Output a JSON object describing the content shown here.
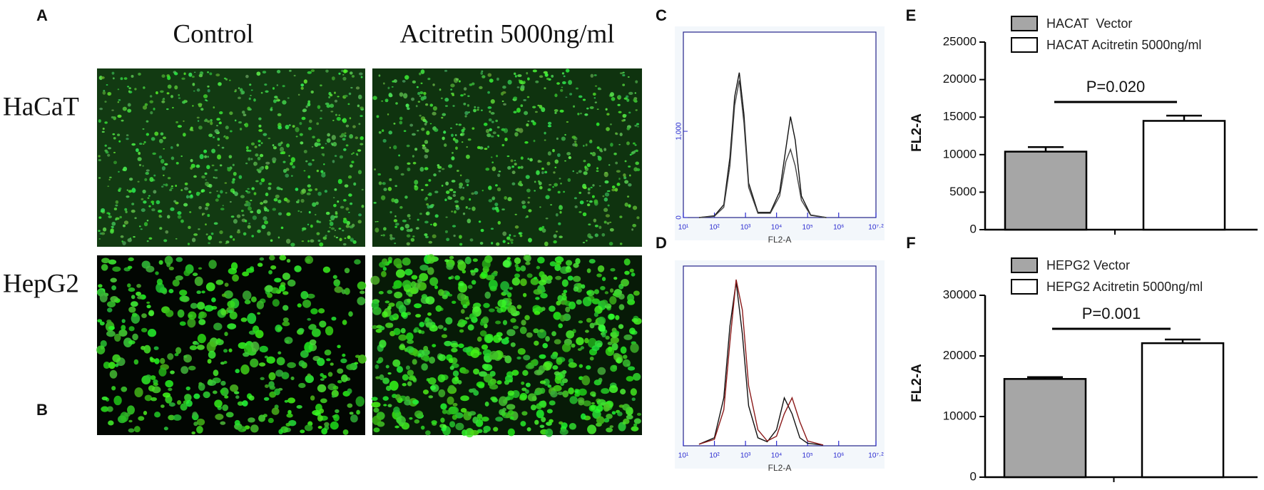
{
  "microscopy": {
    "panel_labels": [
      "A",
      "B"
    ],
    "column_labels": [
      "Control",
      "Acitretin 5000ng/ml"
    ],
    "row_labels": [
      "HaCaT",
      "HepG2"
    ]
  },
  "chart_data": [
    {
      "type": "line",
      "panel": "C",
      "xlabel": "FL2-A",
      "xscale": "log",
      "x": [
        32,
        100,
        200,
        316,
        447,
        631,
        891,
        1259,
        2512,
        6310,
        12589,
        19953,
        28184,
        39811,
        63096,
        125893,
        398107
      ],
      "series": [
        {
          "color": "#111111",
          "values": [
            0,
            20,
            150,
            700,
            1400,
            1680,
            1200,
            400,
            60,
            60,
            300,
            800,
            1170,
            900,
            250,
            30,
            0
          ]
        },
        {
          "color": "#444444",
          "values": [
            0,
            15,
            120,
            600,
            1300,
            1590,
            1100,
            350,
            50,
            50,
            250,
            650,
            790,
            600,
            200,
            25,
            0
          ]
        }
      ],
      "xlim": [
        10,
        15848932
      ],
      "ylim": [
        0,
        2150
      ],
      "xticks": [
        {
          "value": 10,
          "label": "10¹"
        },
        {
          "value": 100,
          "label": "10²"
        },
        {
          "value": 1000,
          "label": "10³"
        },
        {
          "value": 10000,
          "label": "10⁴"
        },
        {
          "value": 100000,
          "label": "10⁵"
        },
        {
          "value": 1000000,
          "label": "10⁶"
        },
        {
          "value": 15848932,
          "label": "10⁷·²"
        }
      ],
      "yticks": [
        0,
        {
          "value": 1000,
          "label": "1,000"
        }
      ]
    },
    {
      "type": "line",
      "panel": "D",
      "xlabel": "FL2-A",
      "xscale": "log",
      "x": [
        32,
        100,
        200,
        316,
        501,
        794,
        1259,
        2512,
        5012,
        10000,
        17783,
        31623,
        56234,
        100000,
        316228
      ],
      "series": [
        {
          "color": "#111111",
          "values": [
            2,
            10,
            60,
            150,
            205,
            140,
            50,
            10,
            5,
            20,
            60,
            40,
            10,
            3,
            1
          ]
        },
        {
          "color": "#8b1a1a",
          "values": [
            2,
            8,
            45,
            130,
            208,
            170,
            75,
            20,
            6,
            12,
            40,
            60,
            30,
            6,
            1
          ]
        }
      ],
      "xlim": [
        10,
        15848932
      ],
      "ylim": [
        0,
        225
      ],
      "xticks": [
        {
          "value": 10,
          "label": "10¹"
        },
        {
          "value": 100,
          "label": "10²"
        },
        {
          "value": 1000,
          "label": "10³"
        },
        {
          "value": 10000,
          "label": "10⁴"
        },
        {
          "value": 100000,
          "label": "10⁵"
        },
        {
          "value": 1000000,
          "label": "10⁶"
        },
        {
          "value": 15848932,
          "label": "10⁷·²"
        }
      ]
    },
    {
      "type": "bar",
      "panel": "E",
      "ylabel": "FL2-A",
      "annotation": "P=0.020",
      "series": [
        {
          "name": "HACAT  Vector",
          "color": "#a6a6a6",
          "values": [
            10400
          ],
          "errors": [
            600
          ]
        },
        {
          "name": "HACAT Acitretin 5000ng/ml",
          "color": "#ffffff",
          "values": [
            14500
          ],
          "errors": [
            700
          ]
        }
      ],
      "ylim": [
        0,
        25000
      ],
      "yticks": [
        0,
        5000,
        10000,
        15000,
        20000,
        25000
      ]
    },
    {
      "type": "bar",
      "panel": "F",
      "ylabel": "FL2-A",
      "annotation": "P=0.001",
      "series": [
        {
          "name": "HEPG2 Vector",
          "color": "#a6a6a6",
          "values": [
            16200
          ],
          "errors": [
            300
          ]
        },
        {
          "name": "HEPG2 Acitretin 5000ng/ml",
          "color": "#ffffff",
          "values": [
            22100
          ],
          "errors": [
            600
          ]
        }
      ],
      "ylim": [
        0,
        30000
      ],
      "yticks": [
        0,
        10000,
        20000,
        30000
      ]
    }
  ]
}
